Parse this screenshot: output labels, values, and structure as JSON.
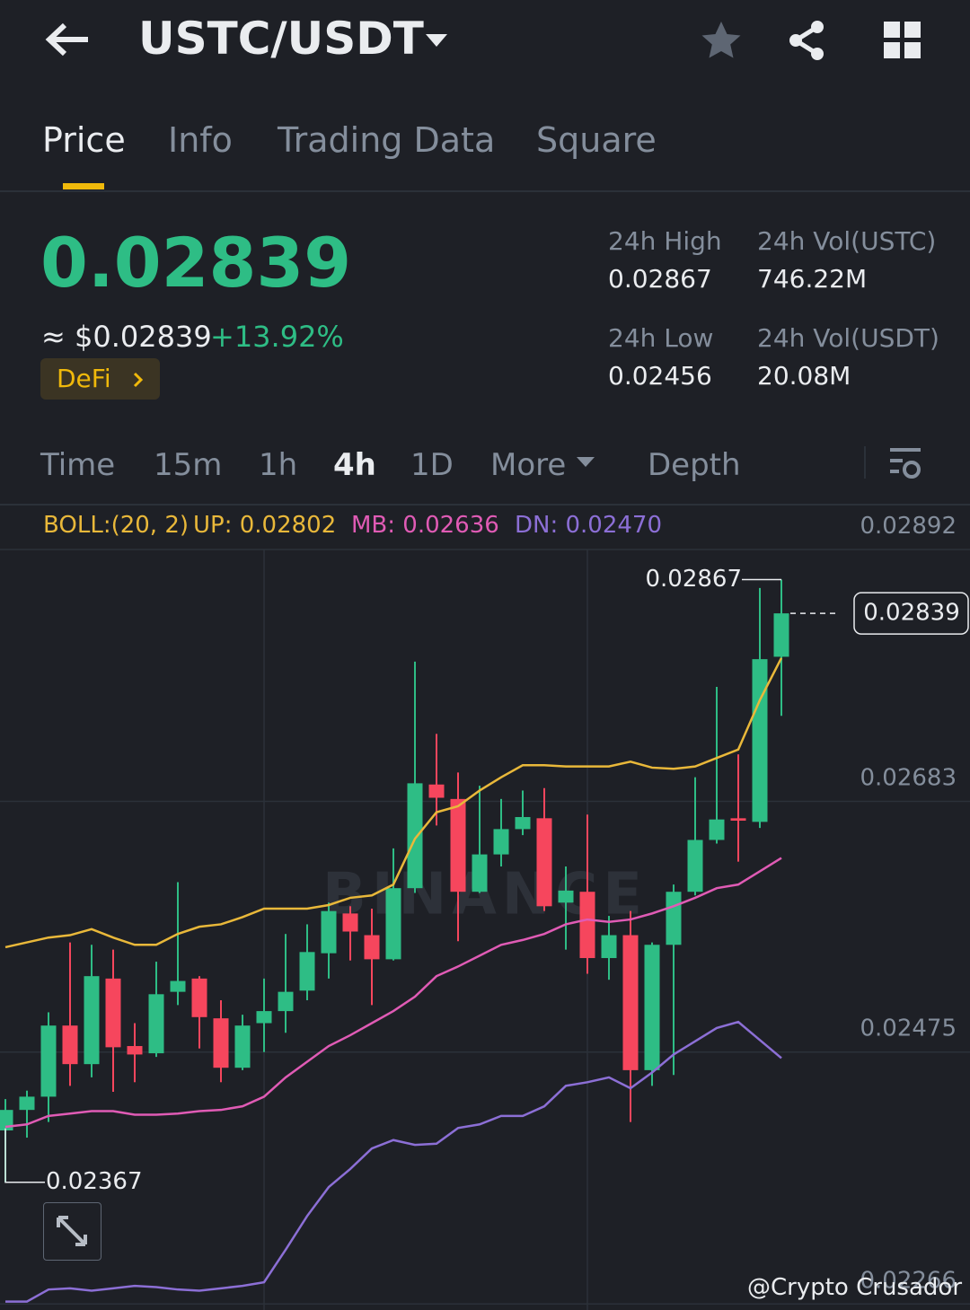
{
  "header": {
    "pair": "USTC/USDT"
  },
  "tabs": [
    "Price",
    "Info",
    "Trading Data",
    "Square"
  ],
  "price": {
    "last": "0.02839",
    "fiat": "≈ $0.02839",
    "change": "+13.92%",
    "tag": "DeFi"
  },
  "stats": [
    {
      "label": "24h High",
      "value": "0.02867"
    },
    {
      "label": "24h Vol(USTC)",
      "value": "746.22M"
    },
    {
      "label": "24h Low",
      "value": "0.02456"
    },
    {
      "label": "24h Vol(USDT)",
      "value": "20.08M"
    }
  ],
  "intervals": [
    "Time",
    "15m",
    "1h",
    "4h",
    "1D",
    "More",
    "Depth"
  ],
  "chart_data": {
    "type": "candlestick",
    "indicator": "BOLL:(20, 2)",
    "open": [
      0.0241,
      0.02427,
      0.02438,
      0.02497,
      0.02465,
      0.02536,
      0.0248,
      0.02474,
      0.02525,
      0.02536,
      0.02503,
      0.02462,
      0.02499,
      0.02509,
      0.02526,
      0.02557,
      0.0259,
      0.02572,
      0.02552,
      0.02611,
      0.02697,
      0.02685,
      0.02608,
      0.02639,
      0.0266,
      0.02669,
      0.02599,
      0.02608,
      0.02553,
      0.02572,
      0.0246,
      0.02564,
      0.02608,
      0.02651,
      0.02669,
      0.02666,
      0.02803
    ],
    "high": [
      0.02436,
      0.02443,
      0.02508,
      0.02566,
      0.02564,
      0.0256,
      0.02499,
      0.0255,
      0.02616,
      0.02538,
      0.02518,
      0.02506,
      0.02536,
      0.02573,
      0.02581,
      0.02599,
      0.02596,
      0.02594,
      0.02644,
      0.02799,
      0.02739,
      0.02707,
      0.02696,
      0.02685,
      0.02692,
      0.02694,
      0.02629,
      0.02672,
      0.02588,
      0.02592,
      0.02566,
      0.02614,
      0.02703,
      0.02778,
      0.02722,
      0.0286,
      0.02867
    ],
    "low": [
      0.02367,
      0.02404,
      0.02417,
      0.02447,
      0.02454,
      0.02442,
      0.0245,
      0.02471,
      0.02514,
      0.02478,
      0.0245,
      0.0246,
      0.02475,
      0.02491,
      0.02518,
      0.02536,
      0.02551,
      0.02514,
      0.02551,
      0.02607,
      0.02663,
      0.02567,
      0.02607,
      0.02629,
      0.02655,
      0.02592,
      0.0256,
      0.0254,
      0.02535,
      0.02417,
      0.02447,
      0.02456,
      0.02605,
      0.02648,
      0.02633,
      0.02661,
      0.02754
    ],
    "close": [
      0.02427,
      0.02438,
      0.02497,
      0.02465,
      0.02538,
      0.02479,
      0.02473,
      0.02523,
      0.02534,
      0.02504,
      0.02462,
      0.02497,
      0.02509,
      0.02525,
      0.02558,
      0.02592,
      0.02575,
      0.02552,
      0.02611,
      0.02698,
      0.02686,
      0.02608,
      0.02639,
      0.0266,
      0.0267,
      0.02596,
      0.02609,
      0.02553,
      0.02572,
      0.0246,
      0.02564,
      0.02608,
      0.02651,
      0.02668,
      0.02667,
      0.02801,
      0.02839
    ],
    "up_color": "#2ebd85",
    "down_color": "#f6465d",
    "series": [
      {
        "name": "UP: 0.02802",
        "color": "#e9b83a",
        "values": [
          0.02562,
          0.02566,
          0.0257,
          0.02572,
          0.02577,
          0.0257,
          0.02564,
          0.02564,
          0.02573,
          0.02579,
          0.02581,
          0.02587,
          0.02594,
          0.02594,
          0.02594,
          0.02597,
          0.02603,
          0.02605,
          0.02614,
          0.02652,
          0.02674,
          0.02679,
          0.02692,
          0.02703,
          0.02713,
          0.02713,
          0.02712,
          0.02712,
          0.02712,
          0.02716,
          0.02711,
          0.0271,
          0.02712,
          0.02719,
          0.02726,
          0.02767,
          0.02802
        ]
      },
      {
        "name": "MB: 0.02636",
        "color": "#e05bb5",
        "values": [
          0.02413,
          0.02415,
          0.02422,
          0.02424,
          0.02426,
          0.02426,
          0.02423,
          0.02423,
          0.02424,
          0.02426,
          0.02427,
          0.0243,
          0.02438,
          0.02454,
          0.02467,
          0.0248,
          0.02489,
          0.02499,
          0.02509,
          0.02521,
          0.02538,
          0.02546,
          0.02555,
          0.02564,
          0.02568,
          0.02573,
          0.02581,
          0.02585,
          0.02583,
          0.02585,
          0.0259,
          0.02596,
          0.02603,
          0.02611,
          0.02614,
          0.02625,
          0.02636
        ]
      },
      {
        "name": "DN: 0.02470",
        "color": "#8c6fd6",
        "values": [
          0.02268,
          0.02268,
          0.02278,
          0.02279,
          0.02277,
          0.02279,
          0.02281,
          0.0228,
          0.02278,
          0.02277,
          0.02279,
          0.02281,
          0.02284,
          0.02311,
          0.02339,
          0.02363,
          0.02378,
          0.02395,
          0.02402,
          0.02398,
          0.02399,
          0.02412,
          0.02415,
          0.02422,
          0.02422,
          0.0243,
          0.02447,
          0.0245,
          0.02454,
          0.02445,
          0.02458,
          0.02473,
          0.02484,
          0.02495,
          0.025,
          0.02485,
          0.0247
        ]
      }
    ],
    "ylim": [
      0.02261,
      0.02927
    ],
    "yticks": [
      0.02892,
      0.02683,
      0.02475,
      0.02266
    ],
    "grid": true,
    "max_label": 0.02867,
    "min_label": 0.02367,
    "last_price": 0.02839,
    "watermark": "BINANCE",
    "credit": "@Crypto Crusador"
  }
}
